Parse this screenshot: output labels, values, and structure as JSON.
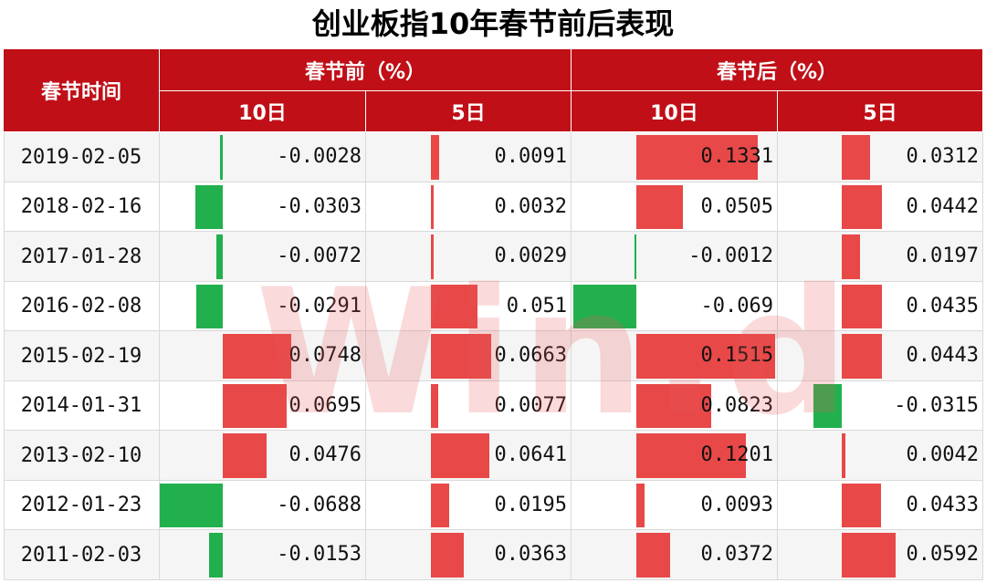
{
  "title": "创业板指10年春节前后表现",
  "header": {
    "date_col": "春节时间",
    "before": "春节前（%）",
    "after": "春节后（%）",
    "sub": [
      "10日",
      "5日",
      "10日",
      "5日"
    ]
  },
  "colors": {
    "header_bg": "#c00f17",
    "positive": "#e84848",
    "negative": "#22b04e"
  },
  "watermark": "Win.d",
  "chart_data": {
    "type": "table",
    "columns": [
      "春节前 10日",
      "春节前 5日",
      "春节后 10日",
      "春节后 5日"
    ],
    "rows": [
      {
        "date": "2019-02-05",
        "values": [
          -0.0028,
          0.0091,
          0.1331,
          0.0312
        ]
      },
      {
        "date": "2018-02-16",
        "values": [
          -0.0303,
          0.0032,
          0.0505,
          0.0442
        ]
      },
      {
        "date": "2017-01-28",
        "values": [
          -0.0072,
          0.0029,
          -0.0012,
          0.0197
        ]
      },
      {
        "date": "2016-02-08",
        "values": [
          -0.0291,
          0.051,
          -0.069,
          0.0435
        ]
      },
      {
        "date": "2015-02-19",
        "values": [
          0.0748,
          0.0663,
          0.1515,
          0.0443
        ]
      },
      {
        "date": "2014-01-31",
        "values": [
          0.0695,
          0.0077,
          0.0823,
          -0.0315
        ]
      },
      {
        "date": "2013-02-10",
        "values": [
          0.0476,
          0.0641,
          0.1201,
          0.0042
        ]
      },
      {
        "date": "2012-01-23",
        "values": [
          -0.0688,
          0.0195,
          0.0093,
          0.0433
        ]
      },
      {
        "date": "2011-02-03",
        "values": [
          -0.0153,
          0.0363,
          0.0372,
          0.0592
        ]
      }
    ],
    "value_labels": [
      [
        "-0.0028",
        "0.0091",
        "0.1331",
        "0.0312"
      ],
      [
        "-0.0303",
        "0.0032",
        "0.0505",
        "0.0442"
      ],
      [
        "-0.0072",
        "0.0029",
        "-0.0012",
        "0.0197"
      ],
      [
        "-0.0291",
        "0.051",
        "-0.069",
        "0.0435"
      ],
      [
        "0.0748",
        "0.0663",
        "0.1515",
        "0.0443"
      ],
      [
        "0.0695",
        "0.0077",
        "0.0823",
        "-0.0315"
      ],
      [
        "0.0476",
        "0.0641",
        "0.1201",
        "0.0042"
      ],
      [
        "-0.0688",
        "0.0195",
        "0.0093",
        "0.0433"
      ],
      [
        "-0.0153",
        "0.0363",
        "0.0372",
        "0.0592"
      ]
    ]
  }
}
